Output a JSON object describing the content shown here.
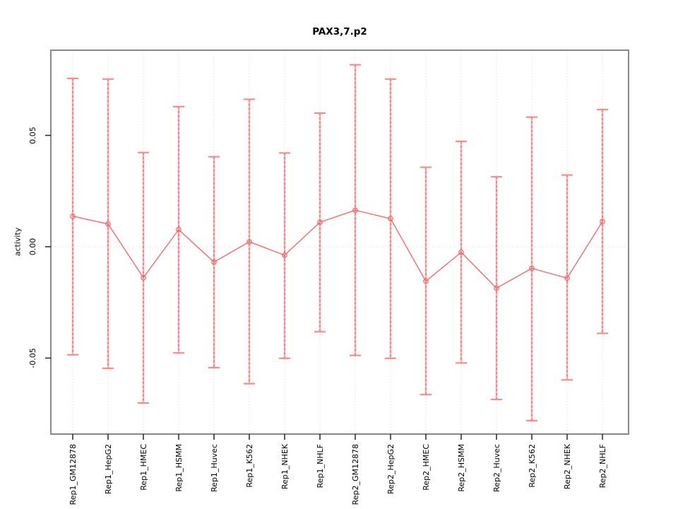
{
  "chart_data": {
    "type": "line",
    "title": "PAX3,7.p2",
    "xlabel": "",
    "ylabel": "activity",
    "categories": [
      "Rep1_GM12878",
      "Rep1_HepG2",
      "Rep1_HMEC",
      "Rep1_HSMM",
      "Rep1_Huvec",
      "Rep1_K562",
      "Rep1_NHEK",
      "Rep1_NHLF",
      "Rep2_GM12878",
      "Rep2_HepG2",
      "Rep2_HMEC",
      "Rep2_HSMM",
      "Rep2_Huvec",
      "Rep2_K562",
      "Rep2_NHEK",
      "Rep2_NHLF"
    ],
    "series": [
      {
        "name": "activity",
        "values": [
          0.0137,
          0.0102,
          -0.0139,
          0.0077,
          -0.0069,
          0.0022,
          -0.0038,
          0.011,
          0.0164,
          0.0126,
          -0.0155,
          -0.0025,
          -0.0186,
          -0.0097,
          -0.0141,
          0.0113
        ],
        "ci_upper": [
          0.0756,
          0.0753,
          0.0423,
          0.0629,
          0.0404,
          0.0662,
          0.0421,
          0.06,
          0.0817,
          0.0753,
          0.0357,
          0.0473,
          0.0314,
          0.0582,
          0.0322,
          0.0616
        ],
        "ci_lower": [
          -0.0485,
          -0.0546,
          -0.0702,
          -0.0477,
          -0.0543,
          -0.0615,
          -0.0501,
          -0.0382,
          -0.0488,
          -0.0501,
          -0.0664,
          -0.0522,
          -0.0686,
          -0.0781,
          -0.0598,
          -0.0389
        ]
      }
    ],
    "ytick_labels": [
      "0.05",
      "0.00",
      "-0.05"
    ],
    "ytick_values": [
      0.05,
      0.0,
      -0.05
    ],
    "ylim": [
      -0.0841,
      0.0883
    ],
    "legend": "none",
    "marker": "open-circle",
    "grid": {
      "vertical_per_category": true,
      "horizontal_at_zero": true,
      "style": "dotted"
    },
    "colors": {
      "ci_band": "#ffb2b2",
      "ci_dash": "#e85f5f",
      "cap": "#fa8b8b",
      "line": "#f46a6a",
      "marker": "#f46a6a",
      "grid": "#d8d8d8",
      "box_border": "#888888",
      "tick": "#222222",
      "text": "#000000"
    }
  }
}
